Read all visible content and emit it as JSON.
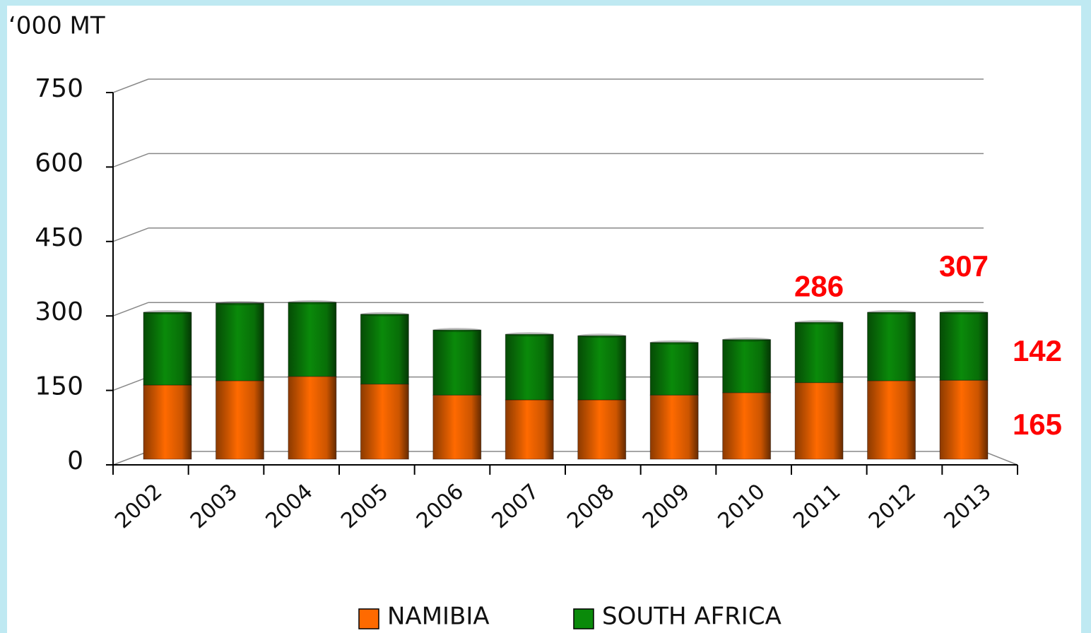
{
  "chart_data": {
    "type": "stacked_bar",
    "ylabel": "‘000 MT",
    "categories": [
      "2002",
      "2003",
      "2004",
      "2005",
      "2006",
      "2007",
      "2008",
      "2009",
      "2010",
      "2011",
      "2012",
      "2013"
    ],
    "series": [
      {
        "name": "NAMIBIA",
        "color": "#ff6a00",
        "values": [
          155,
          164,
          173,
          157,
          134,
          124,
          124,
          134,
          139,
          160,
          164,
          165
        ]
      },
      {
        "name": "SOUTH AFRICA",
        "color": "#0a8a0a",
        "values": [
          152,
          162,
          155,
          146,
          136,
          137,
          134,
          110,
          111,
          126,
          143,
          142
        ]
      }
    ],
    "annotations": [
      {
        "text": "286",
        "category": "2011"
      },
      {
        "text": "307",
        "category": "2013"
      }
    ],
    "ylim": [
      0,
      750
    ],
    "yticks": [
      0,
      150,
      300,
      450,
      600,
      750
    ],
    "grid": true,
    "legend": "bottom"
  }
}
